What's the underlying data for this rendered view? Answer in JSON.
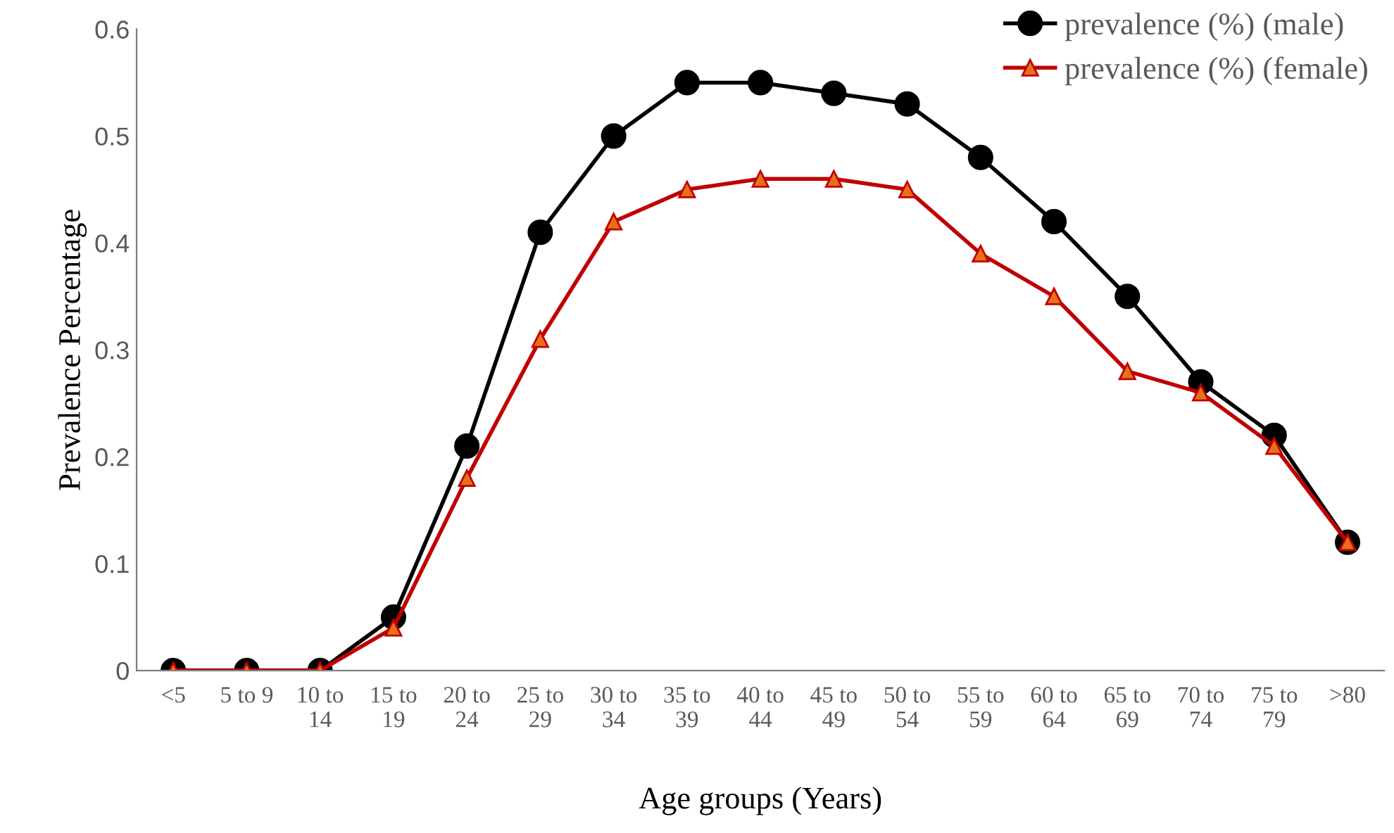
{
  "chart_data": {
    "type": "line",
    "xlabel": "Age groups (Years)",
    "ylabel": "Prevalence Percentage",
    "categories": [
      "<5",
      "5 to 9",
      "10 to\n14",
      "15 to\n19",
      "20 to\n24",
      "25 to\n29",
      "30 to\n34",
      "35 to\n39",
      "40 to\n44",
      "45 to\n49",
      "50 to\n54",
      "55 to\n59",
      "60 to\n64",
      "65 to\n69",
      "70 to\n74",
      "75 to\n79",
      ">80"
    ],
    "series": [
      {
        "name": "prevalence (%) (male)",
        "color": "#000000",
        "marker": "circle",
        "values": [
          0,
          0,
          0,
          0.05,
          0.21,
          0.41,
          0.5,
          0.55,
          0.55,
          0.54,
          0.53,
          0.48,
          0.42,
          0.35,
          0.27,
          0.22,
          0.12
        ]
      },
      {
        "name": "prevalence (%) (female)",
        "color": "#c00000",
        "marker": "triangle",
        "values": [
          0,
          0,
          0,
          0.04,
          0.18,
          0.31,
          0.42,
          0.45,
          0.46,
          0.46,
          0.45,
          0.39,
          0.35,
          0.28,
          0.26,
          0.21,
          0.12
        ]
      }
    ],
    "ylim": [
      0,
      0.6
    ],
    "yticks": [
      0,
      0.1,
      0.2,
      0.3,
      0.4,
      0.5,
      0.6
    ],
    "grid": false,
    "legend": "top right",
    "line_style": "solid"
  }
}
